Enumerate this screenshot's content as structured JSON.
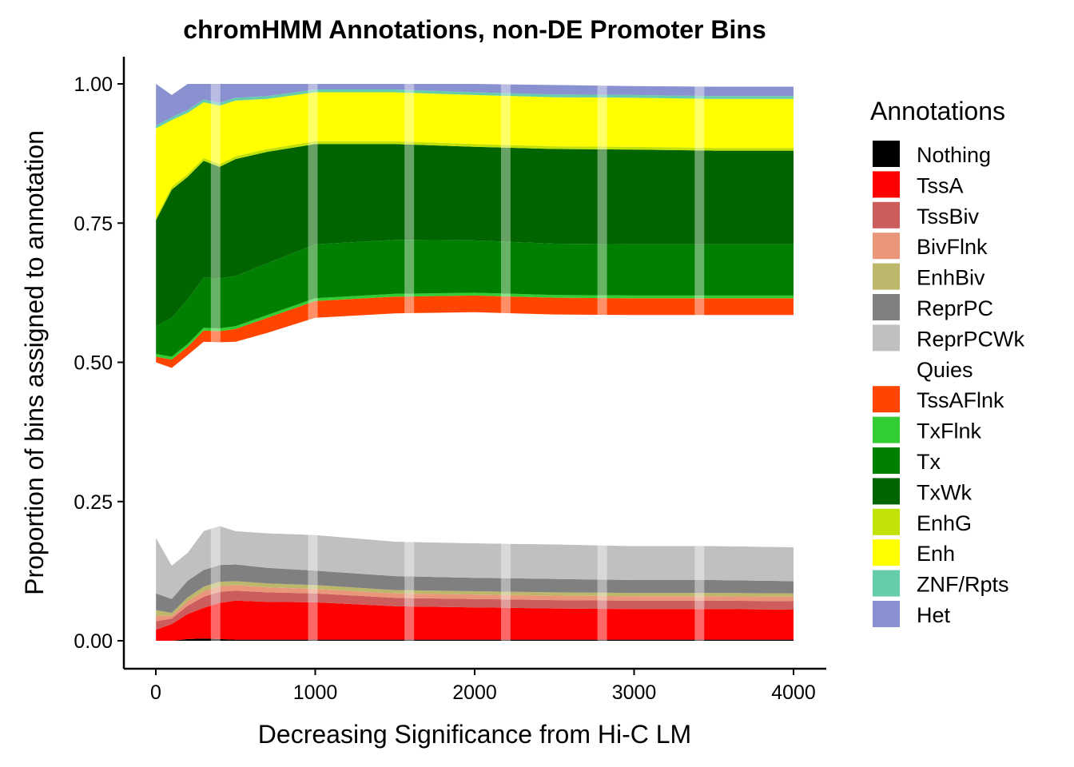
{
  "chart_data": {
    "type": "area",
    "title": "chromHMM Annotations, non-DE Promoter Bins",
    "xlabel": "Decreasing Significance from Hi-C LM",
    "ylabel": "Proportion of bins assigned to annotation",
    "xlim": [
      0,
      4000
    ],
    "ylim": [
      0,
      1
    ],
    "x_ticks": [
      "0",
      "1000",
      "2000",
      "3000",
      "4000"
    ],
    "y_ticks": [
      "0.00",
      "0.25",
      "0.50",
      "0.75",
      "1.00"
    ],
    "grid": false,
    "legend_position": "right",
    "legend_title": "Annotations",
    "x": [
      1,
      100,
      200,
      300,
      400,
      500,
      700,
      1000,
      1500,
      2000,
      2500,
      3000,
      3500,
      4000
    ],
    "series": [
      {
        "name": "Nothing",
        "color": "#000000",
        "values": [
          0.0,
          0.0,
          0.003,
          0.004,
          0.003,
          0.002,
          0.002,
          0.002,
          0.002,
          0.002,
          0.002,
          0.002,
          0.002,
          0.002
        ]
      },
      {
        "name": "TssA",
        "color": "#FF0000",
        "values": [
          0.02,
          0.03,
          0.045,
          0.055,
          0.065,
          0.07,
          0.068,
          0.067,
          0.06,
          0.058,
          0.056,
          0.055,
          0.055,
          0.054
        ]
      },
      {
        "name": "TssBiv",
        "color": "#CD5C5C",
        "values": [
          0.015,
          0.01,
          0.015,
          0.02,
          0.02,
          0.018,
          0.017,
          0.016,
          0.015,
          0.015,
          0.015,
          0.015,
          0.015,
          0.015
        ]
      },
      {
        "name": "BivFlnk",
        "color": "#E9967A",
        "values": [
          0.01,
          0.005,
          0.008,
          0.01,
          0.01,
          0.01,
          0.009,
          0.008,
          0.008,
          0.008,
          0.008,
          0.008,
          0.008,
          0.008
        ]
      },
      {
        "name": "EnhBiv",
        "color": "#BDB76B",
        "values": [
          0.01,
          0.005,
          0.007,
          0.008,
          0.008,
          0.007,
          0.007,
          0.007,
          0.006,
          0.006,
          0.006,
          0.006,
          0.006,
          0.006
        ]
      },
      {
        "name": "ReprPC",
        "color": "#808080",
        "values": [
          0.03,
          0.025,
          0.03,
          0.03,
          0.03,
          0.03,
          0.028,
          0.026,
          0.025,
          0.024,
          0.024,
          0.023,
          0.023,
          0.022
        ]
      },
      {
        "name": "ReprPCWk",
        "color": "#C0C0C0",
        "values": [
          0.1,
          0.06,
          0.05,
          0.07,
          0.07,
          0.06,
          0.062,
          0.064,
          0.062,
          0.062,
          0.062,
          0.061,
          0.061,
          0.061
        ]
      },
      {
        "name": "Quies",
        "color": "#FFFFFF",
        "values": [
          0.315,
          0.355,
          0.355,
          0.34,
          0.33,
          0.34,
          0.36,
          0.39,
          0.41,
          0.415,
          0.413,
          0.415,
          0.415,
          0.417
        ]
      },
      {
        "name": "TssAFlnk",
        "color": "#FF4500",
        "values": [
          0.01,
          0.015,
          0.015,
          0.02,
          0.02,
          0.023,
          0.027,
          0.03,
          0.03,
          0.03,
          0.03,
          0.03,
          0.03,
          0.03
        ]
      },
      {
        "name": "TxFlnk",
        "color": "#32CD32",
        "values": [
          0.005,
          0.005,
          0.005,
          0.005,
          0.005,
          0.005,
          0.005,
          0.005,
          0.005,
          0.005,
          0.005,
          0.005,
          0.005,
          0.005
        ]
      },
      {
        "name": "Tx",
        "color": "#008000",
        "values": [
          0.05,
          0.07,
          0.08,
          0.09,
          0.09,
          0.09,
          0.093,
          0.097,
          0.097,
          0.094,
          0.092,
          0.092,
          0.092,
          0.092
        ]
      },
      {
        "name": "TxWk",
        "color": "#006400",
        "values": [
          0.19,
          0.23,
          0.22,
          0.21,
          0.2,
          0.21,
          0.2,
          0.18,
          0.172,
          0.168,
          0.17,
          0.17,
          0.168,
          0.168
        ]
      },
      {
        "name": "EnhG",
        "color": "#C2E105",
        "values": [
          0.005,
          0.005,
          0.005,
          0.005,
          0.005,
          0.005,
          0.005,
          0.005,
          0.005,
          0.005,
          0.005,
          0.005,
          0.005,
          0.005
        ]
      },
      {
        "name": "Enh",
        "color": "#FFFF00",
        "values": [
          0.16,
          0.12,
          0.11,
          0.1,
          0.105,
          0.1,
          0.09,
          0.088,
          0.088,
          0.088,
          0.088,
          0.088,
          0.088,
          0.088
        ]
      },
      {
        "name": "ZNF/Rpts",
        "color": "#66CDAA",
        "values": [
          0.005,
          0.005,
          0.005,
          0.005,
          0.005,
          0.005,
          0.005,
          0.005,
          0.005,
          0.005,
          0.005,
          0.005,
          0.005,
          0.005
        ]
      },
      {
        "name": "Het",
        "color": "#8A91D0",
        "values": [
          0.075,
          0.04,
          0.047,
          0.028,
          0.034,
          0.025,
          0.022,
          0.01,
          0.01,
          0.015,
          0.017,
          0.016,
          0.017,
          0.017
        ]
      }
    ],
    "vertical_bands_x": [
      375,
      985,
      1590,
      2195,
      2800,
      3410
    ]
  }
}
